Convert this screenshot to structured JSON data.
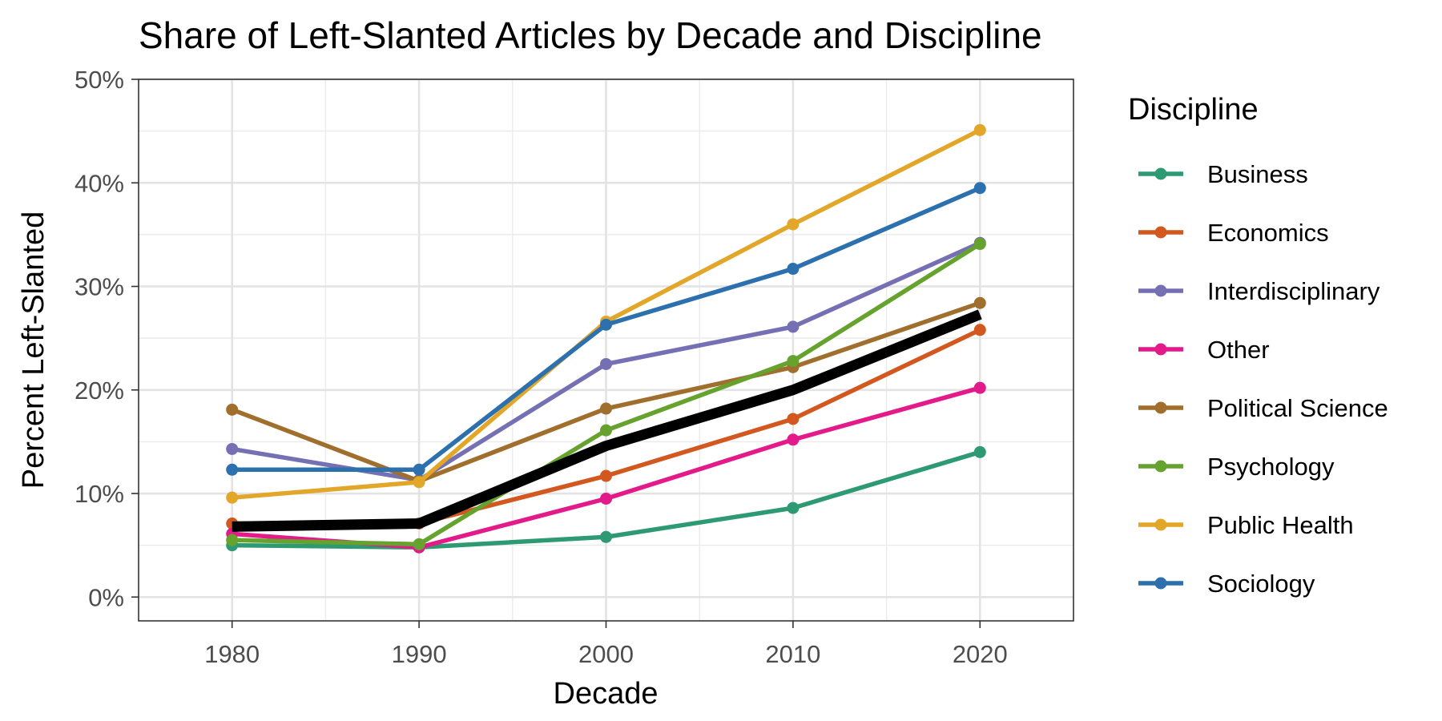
{
  "chart_data": {
    "type": "line",
    "title": "Share of Left-Slanted Articles by Decade and Discipline",
    "xlabel": "Decade",
    "ylabel": "Percent Left-Slanted",
    "x": [
      1980,
      1990,
      2000,
      2010,
      2020
    ],
    "x_tick_labels": [
      "1980",
      "1990",
      "2000",
      "2010",
      "2020"
    ],
    "y_tick_labels": [
      "0%",
      "10%",
      "20%",
      "30%",
      "40%",
      "50%"
    ],
    "ylim": [
      -2.3,
      50
    ],
    "grid": true,
    "legend_title": "Discipline",
    "legend_position": "right",
    "series": [
      {
        "name": "Business",
        "color": "#2E9A73",
        "values": [
          5.0,
          4.8,
          5.8,
          8.6,
          14.0
        ]
      },
      {
        "name": "Economics",
        "color": "#D2581F",
        "values": [
          7.1,
          7.1,
          11.7,
          17.2,
          25.8
        ]
      },
      {
        "name": "Interdisciplinary",
        "color": "#7570B3",
        "values": [
          14.3,
          11.3,
          22.5,
          26.1,
          34.2
        ]
      },
      {
        "name": "Other",
        "color": "#E31A8A",
        "values": [
          6.1,
          4.8,
          9.5,
          15.2,
          20.2
        ]
      },
      {
        "name": "Political Science",
        "color": "#A06F2D",
        "values": [
          18.1,
          11.2,
          18.2,
          22.2,
          28.4
        ]
      },
      {
        "name": "Psychology",
        "color": "#66A22E",
        "values": [
          5.5,
          5.1,
          16.1,
          22.8,
          34.1
        ]
      },
      {
        "name": "Public Health",
        "color": "#E2A629",
        "values": [
          9.6,
          11.1,
          26.6,
          36.0,
          45.1
        ]
      },
      {
        "name": "Sociology",
        "color": "#2C71AE",
        "values": [
          12.3,
          12.3,
          26.3,
          31.7,
          39.5
        ]
      }
    ],
    "overall_line": {
      "color": "#000000",
      "values": [
        6.8,
        7.1,
        14.6,
        20.0,
        27.3
      ]
    }
  }
}
